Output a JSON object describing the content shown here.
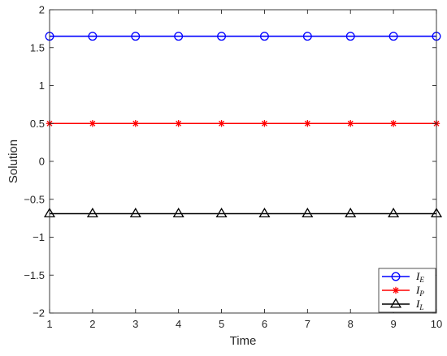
{
  "chart_data": {
    "type": "line",
    "xlabel": "Time",
    "ylabel": "Solution",
    "xlim": [
      1,
      10
    ],
    "ylim": [
      -2,
      2
    ],
    "xticks": [
      1,
      2,
      3,
      4,
      5,
      6,
      7,
      8,
      9,
      10
    ],
    "yticks": [
      -2,
      -1.5,
      -1,
      -0.5,
      0,
      0.5,
      1,
      1.5,
      2
    ],
    "ytick_labels": [
      "−2",
      "−1.5",
      "−1",
      "−0.5",
      "0",
      "0.5",
      "1",
      "1.5",
      "2"
    ],
    "grid": false,
    "legend_position": "bottom-right",
    "x": [
      1,
      2,
      3,
      4,
      5,
      6,
      7,
      8,
      9,
      10
    ],
    "series": [
      {
        "name": "I",
        "subscript": "E",
        "color": "#0000ff",
        "marker": "circle",
        "values": [
          1.65,
          1.65,
          1.65,
          1.65,
          1.65,
          1.65,
          1.65,
          1.65,
          1.65,
          1.65
        ]
      },
      {
        "name": "I",
        "subscript": "P",
        "color": "#ff0000",
        "marker": "asterisk",
        "values": [
          0.5,
          0.5,
          0.5,
          0.5,
          0.5,
          0.5,
          0.5,
          0.5,
          0.5,
          0.5
        ]
      },
      {
        "name": "I",
        "subscript": "L",
        "color": "#000000",
        "marker": "triangle",
        "values": [
          -0.69,
          -0.69,
          -0.69,
          -0.69,
          -0.69,
          -0.69,
          -0.69,
          -0.69,
          -0.69,
          -0.69
        ]
      }
    ]
  }
}
